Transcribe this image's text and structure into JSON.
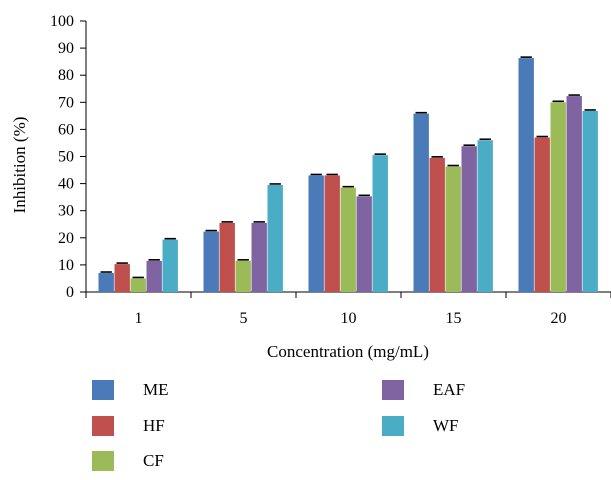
{
  "chart_data": {
    "type": "bar",
    "categories": [
      "1",
      "5",
      "10",
      "15",
      "20"
    ],
    "series": [
      {
        "name": "ME",
        "color": "#4a7ab8",
        "values": [
          7,
          22.3,
          43,
          65.8,
          86.3
        ]
      },
      {
        "name": "HF",
        "color": "#c0504d",
        "values": [
          10.3,
          25.5,
          43,
          49.5,
          57
        ]
      },
      {
        "name": "CF",
        "color": "#9bbb59",
        "values": [
          5,
          11.5,
          38.5,
          46.3,
          70
        ]
      },
      {
        "name": "EAF",
        "color": "#8064a2",
        "values": [
          11.5,
          25.5,
          35.3,
          53.8,
          72.3
        ]
      },
      {
        "name": "WF",
        "color": "#4bacc6",
        "values": [
          19.3,
          39.5,
          50.5,
          56,
          66.8
        ]
      }
    ],
    "xlabel": "Concentration (mg/mL)",
    "ylabel": "Inhibition (%)",
    "ylim": [
      0,
      100
    ],
    "yticks": [
      0,
      10,
      20,
      30,
      40,
      50,
      60,
      70,
      80,
      90,
      100
    ],
    "error_bars": true,
    "grid": false,
    "legend_position": "bottom"
  }
}
